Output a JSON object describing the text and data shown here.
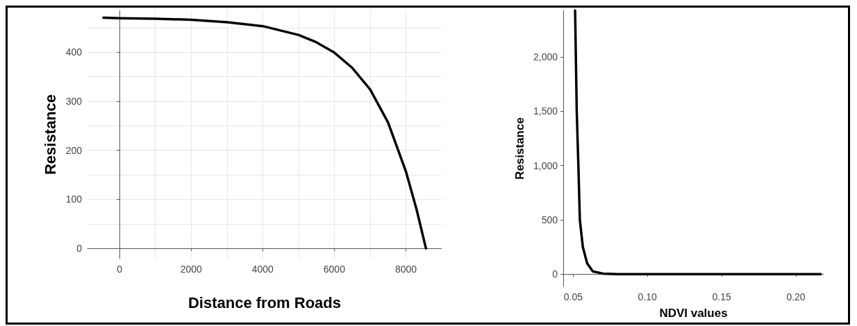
{
  "chart_data": [
    {
      "type": "line",
      "xlabel": "Distance from Roads",
      "ylabel": "Resistance",
      "grid": true,
      "marker": "none",
      "line_style": "solid",
      "xlim": [
        -895,
        9000
      ],
      "ylim": [
        -21,
        485
      ],
      "xticks": [
        0,
        {
          "value": 1000,
          "label": null
        },
        2000,
        {
          "value": 3000,
          "label": null
        },
        4000,
        {
          "value": 5000,
          "label": null
        },
        6000,
        {
          "value": 7000,
          "label": null
        },
        8000
      ],
      "yticks": [
        0,
        {
          "value": 50,
          "label": null
        },
        100,
        {
          "value": 150,
          "label": null
        },
        200,
        {
          "value": 250,
          "label": null
        },
        300,
        {
          "value": 350,
          "label": null
        },
        400,
        {
          "value": 450,
          "label": null
        }
      ],
      "series": [
        {
          "color": "#000000",
          "x": [
            -450,
            0,
            1000,
            2000,
            3000,
            4000,
            5000,
            5500,
            6000,
            6500,
            7000,
            7500,
            8000,
            8300,
            8560
          ],
          "values": [
            470,
            469,
            468,
            466,
            461,
            453,
            435,
            420,
            399,
            368,
            324,
            257,
            157,
            79,
            0
          ]
        }
      ]
    },
    {
      "type": "line",
      "xlabel": "NDVI values",
      "ylabel": "Resistance",
      "grid": false,
      "marker": "none",
      "line_style": "solid",
      "xlim": [
        0.0433,
        0.2187
      ],
      "ylim": [
        -114,
        2430
      ],
      "xticks": [
        {
          "value": 0.05,
          "label": "0.05"
        },
        {
          "value": 0.1,
          "label": "0.10"
        },
        {
          "value": 0.15,
          "label": "0.15"
        },
        {
          "value": 0.2,
          "label": "0.20"
        }
      ],
      "yticks": [
        0,
        500,
        {
          "value": 1000,
          "label": "1,000"
        },
        {
          "value": 1500,
          "label": "1,500"
        },
        {
          "value": 2000,
          "label": "2,000"
        }
      ],
      "series": [
        {
          "color": "#000000",
          "x": [
            0.0513,
            0.0524,
            0.0535,
            0.0545,
            0.0565,
            0.0594,
            0.0632,
            0.07,
            0.08,
            0.1,
            0.15,
            0.2,
            0.2167
          ],
          "values": [
            2430,
            1500,
            1000,
            500,
            250,
            100,
            25,
            5,
            0,
            0,
            0,
            0,
            0
          ]
        }
      ]
    }
  ]
}
